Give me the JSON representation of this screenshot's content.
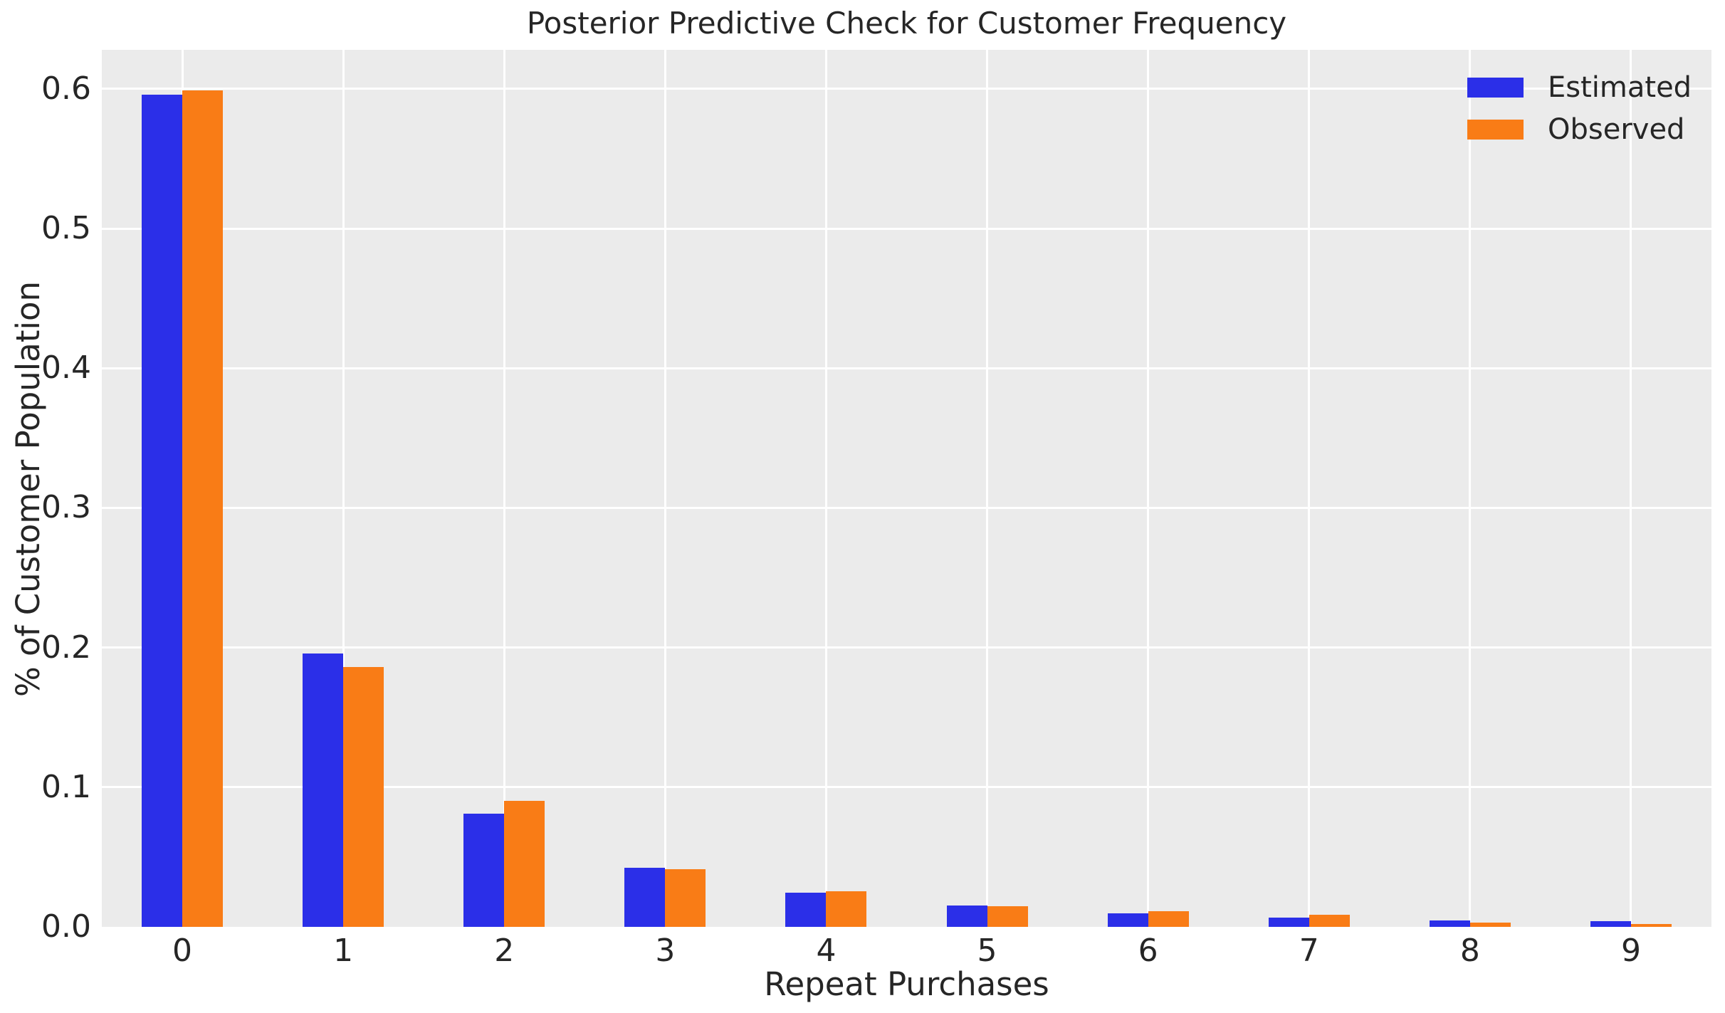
{
  "chart_data": {
    "type": "bar",
    "title": "Posterior Predictive Check for Customer Frequency",
    "xlabel": "Repeat Purchases",
    "ylabel": "% of Customer Population",
    "categories": [
      "0",
      "1",
      "2",
      "3",
      "4",
      "5",
      "6",
      "7",
      "8",
      "9"
    ],
    "series": [
      {
        "name": "Estimated",
        "color": "#2b2fe8",
        "values": [
          0.596,
          0.196,
          0.081,
          0.0425,
          0.0243,
          0.0155,
          0.0099,
          0.0067,
          0.0046,
          0.0039
        ]
      },
      {
        "name": "Observed",
        "color": "#f97c16",
        "values": [
          0.599,
          0.186,
          0.09,
          0.0415,
          0.0255,
          0.0149,
          0.0113,
          0.0086,
          0.0029,
          0.002
        ]
      }
    ],
    "ylim": [
      0,
      0.628
    ],
    "yticks": [
      0.0,
      0.1,
      0.2,
      0.3,
      0.4,
      0.5,
      0.6
    ],
    "ytick_labels": [
      "0.0",
      "0.1",
      "0.2",
      "0.3",
      "0.4",
      "0.5",
      "0.6"
    ],
    "grid": true,
    "legend_position": "upper right",
    "colors": {
      "plot_background": "#ebebeb",
      "grid": "#ffffff",
      "text": "#262626",
      "figure_background": "#ffffff"
    }
  }
}
